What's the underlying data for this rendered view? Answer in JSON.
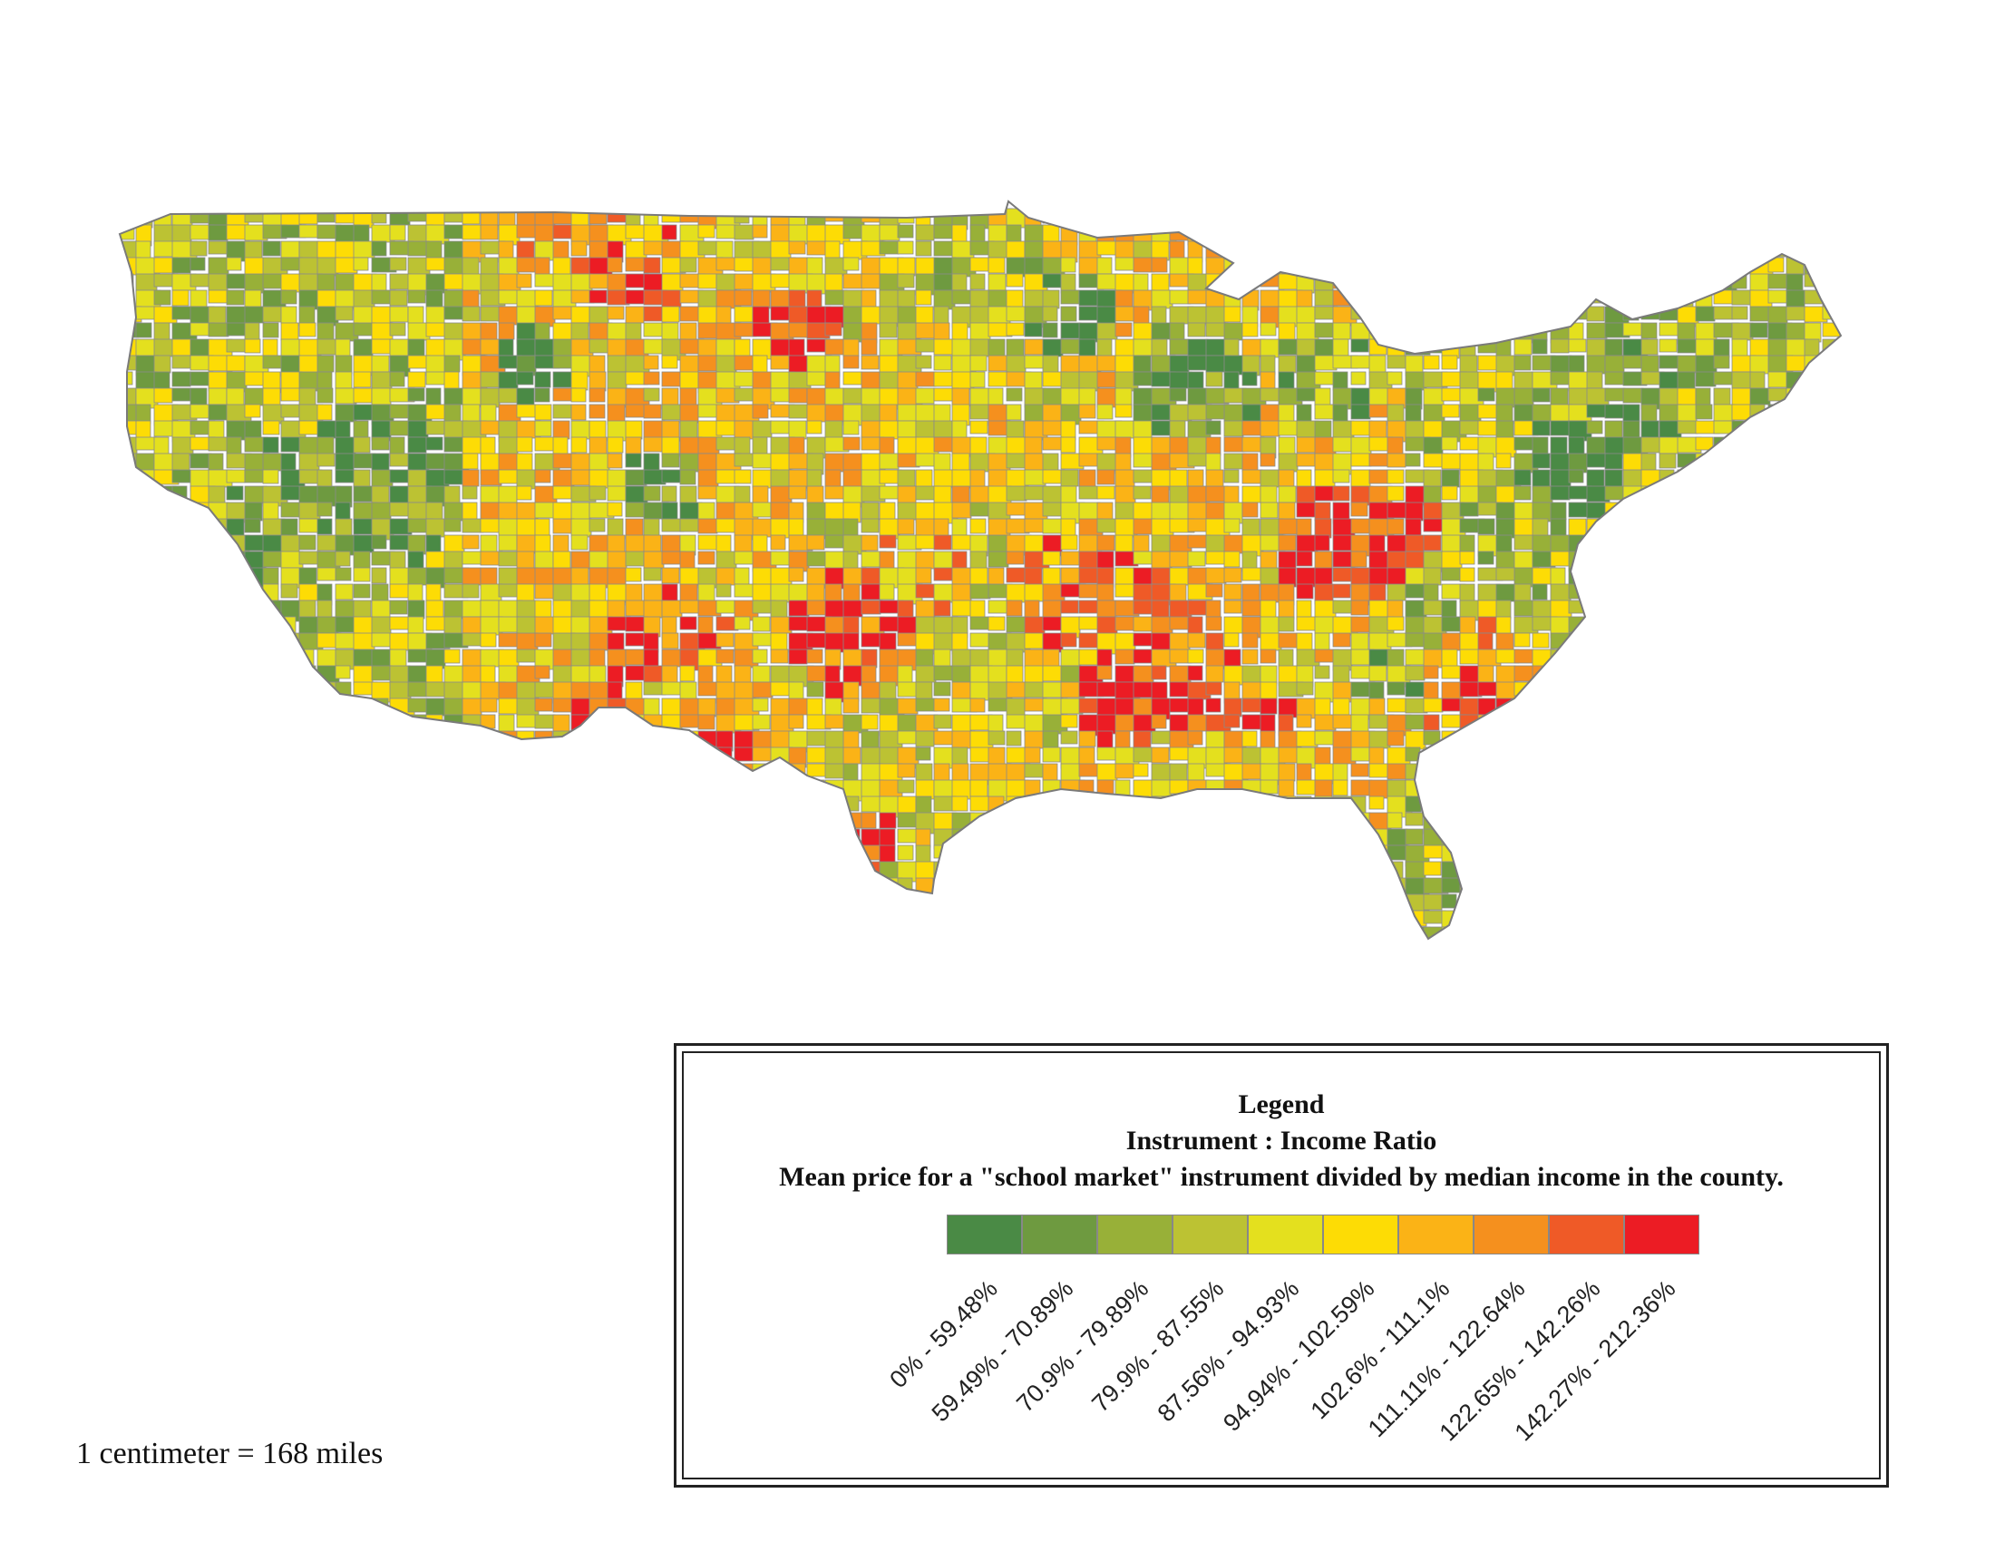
{
  "map": {
    "subject": "Instrument : Income Ratio by county",
    "border_color": "#8a8a8a"
  },
  "scale_text": "1 centimeter = 168 miles",
  "legend": {
    "title": "Legend",
    "subtitle": "Instrument : Income Ratio",
    "description": "Mean price for a \"school market\" instrument divided by median income in the county.",
    "classes": [
      {
        "label": "0% - 59.48%",
        "color": "#4a8a45"
      },
      {
        "label": "59.49% - 70.89%",
        "color": "#6e9a40"
      },
      {
        "label": "70.9% - 79.89%",
        "color": "#98b038"
      },
      {
        "label": "79.9% - 87.55%",
        "color": "#bcc233"
      },
      {
        "label": "87.56% - 94.93%",
        "color": "#e4e01e"
      },
      {
        "label": "94.94% - 102.59%",
        "color": "#fddc05"
      },
      {
        "label": "102.6% - 111.1%",
        "color": "#fbb316"
      },
      {
        "label": "111.11% - 122.64%",
        "color": "#f5901e"
      },
      {
        "label": "122.65% - 142.26%",
        "color": "#ef5a27"
      },
      {
        "label": "142.27% - 212.36%",
        "color": "#ec1c24"
      }
    ]
  }
}
